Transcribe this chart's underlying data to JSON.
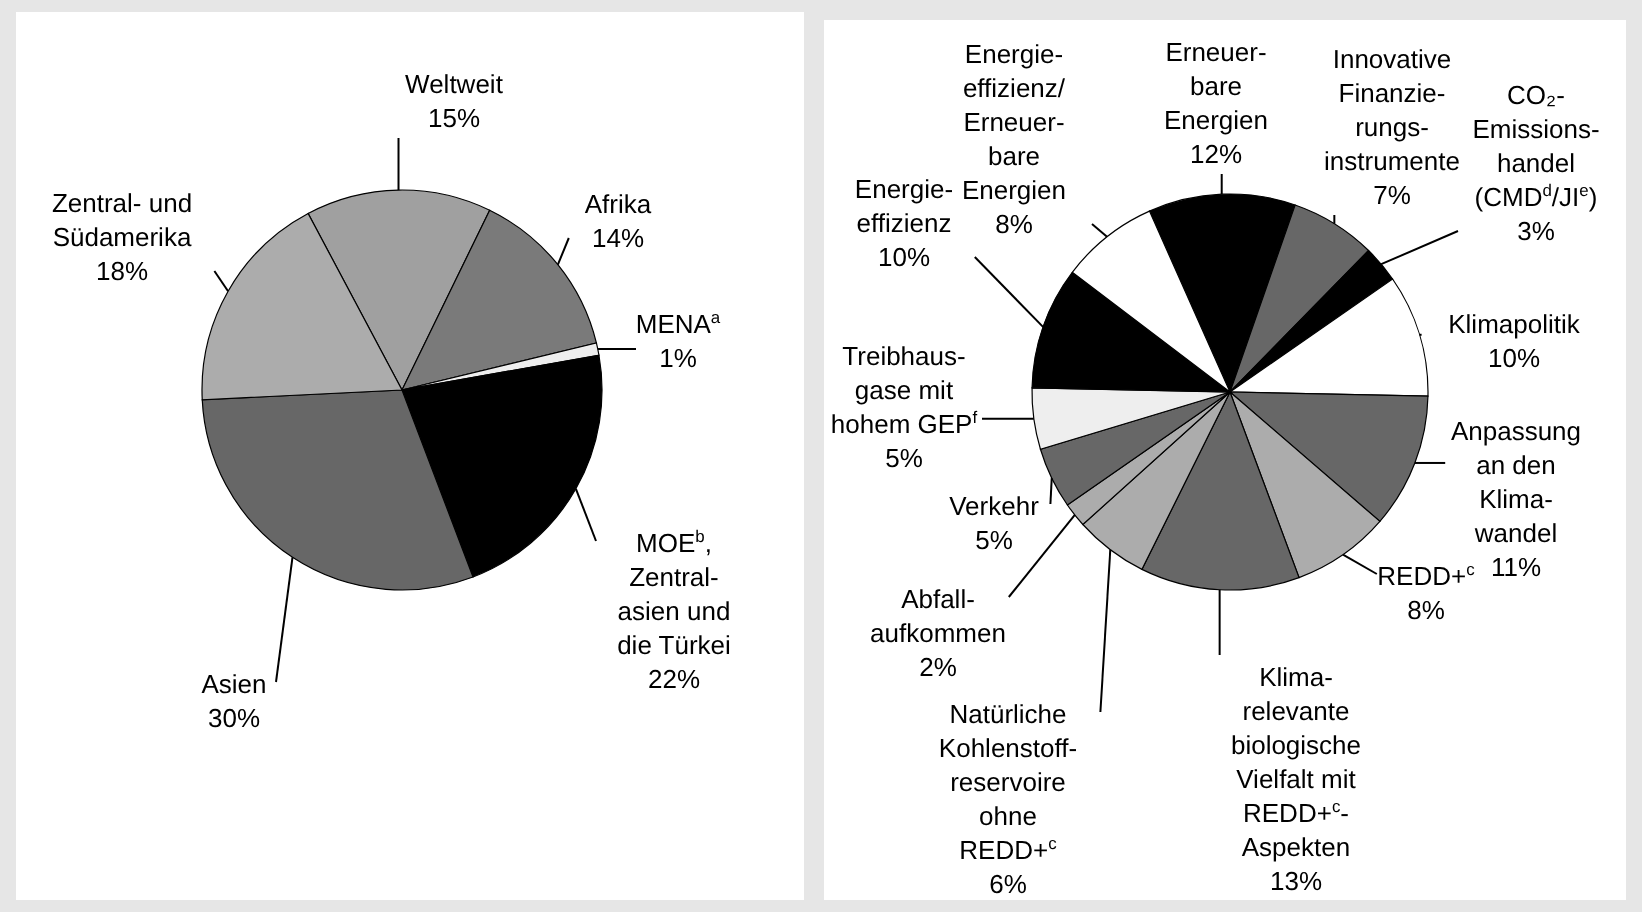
{
  "chart_data": [
    {
      "type": "pie",
      "categories": [
        "Weltweit",
        "Afrika",
        "MENA$^{a}$",
        "MOE$^{b}$,\nZentral-\nasien und\ndie Türkei",
        "Asien",
        "Zentral- und\nSüdamerika"
      ],
      "values": [
        15,
        14,
        1,
        22,
        30,
        18
      ],
      "colors": [
        "#a0a0a0",
        "#7a7a7a",
        "#eeeeee",
        "#000000",
        "#676767",
        "#acacac"
      ],
      "value_labels": [
        "15%",
        "14%",
        "1%",
        "22%",
        "30%",
        "18%"
      ]
    },
    {
      "type": "pie",
      "categories": [
        "Erneuer-\nbare\nEnergien",
        "Innovative\nFinanzie-\nrungs-\ninstrumente",
        "CO₂-\nEmissions-\nhandel\n(CMD$^{d}$/JI$^{e}$)",
        "Klimapolitik",
        "Anpassung\nan den\nKlima-\nwandel",
        "REDD+$^{c}$",
        "Klima-\nrelevante\nbiologische\nVielfalt mit\nREDD+$^{c}$-\nAspekten",
        "Natürliche\nKohlenstoff-\nreservoire\nohne\nREDD+$^{c}$",
        "Abfall-\naufkommen",
        "Verkehr",
        "Treibhaus-\ngase mit\nhohem GEP$^{f}$",
        "Energie-\neffizienz",
        "Energie-\neffizienz/\nErneuer-\nbare\nEnergien"
      ],
      "values": [
        12,
        7,
        3,
        10,
        11,
        8,
        13,
        6,
        2,
        5,
        5,
        10,
        8
      ],
      "colors": [
        "#000000",
        "#676767",
        "#000000",
        "#ffffff",
        "#676767",
        "#acacac",
        "#676767",
        "#acacac",
        "#acacac",
        "#676767",
        "#eeeeee",
        "#000000",
        "#ffffff"
      ],
      "value_labels": [
        "12%",
        "7%",
        "3%",
        "10%",
        "11%",
        "8%",
        "13%",
        "6%",
        "2%",
        "5%",
        "5%",
        "10%",
        "8%"
      ]
    }
  ]
}
